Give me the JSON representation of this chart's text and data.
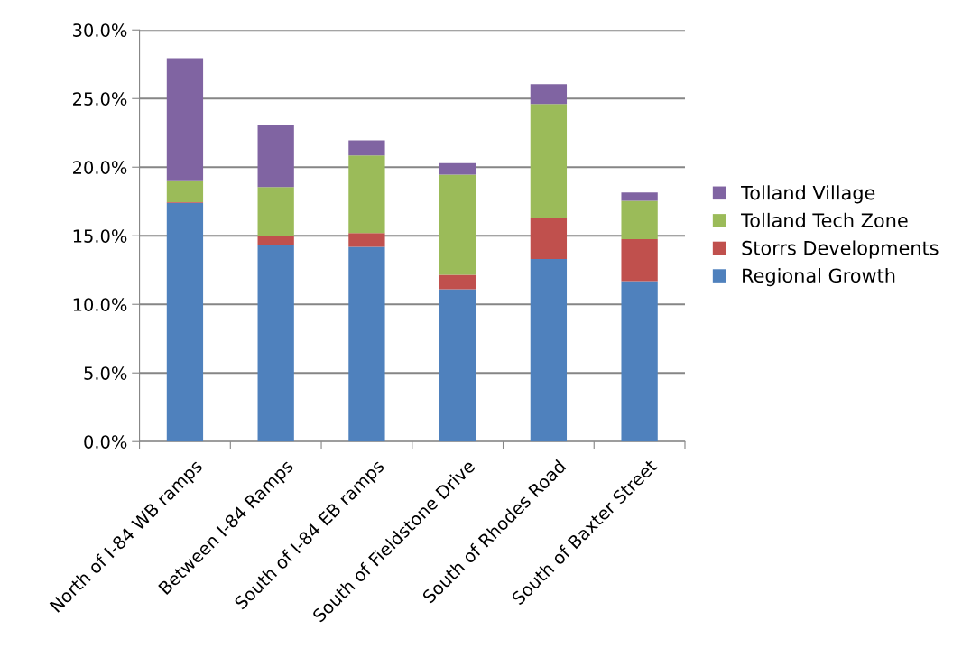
{
  "chart_data": {
    "type": "bar",
    "stacked": true,
    "categories": [
      "North of I-84 WB ramps",
      "Between I-84 Ramps",
      "South of I-84 EB ramps",
      "South of Fieldstone Drive",
      "South of Rhodes Road",
      "South of Baxter Street"
    ],
    "series": [
      {
        "name": "Regional Growth",
        "color": "#4f81bd",
        "values": [
          17.4,
          14.3,
          14.2,
          11.1,
          13.3,
          11.7
        ]
      },
      {
        "name": "Storrs Developments",
        "color": "#c0504d",
        "values": [
          0.05,
          0.65,
          1.0,
          1.05,
          3.0,
          3.05
        ]
      },
      {
        "name": "Tolland Tech Zone",
        "color": "#9bbb59",
        "values": [
          1.6,
          3.6,
          5.65,
          7.3,
          8.3,
          2.8
        ]
      },
      {
        "name": "Tolland Village",
        "color": "#8064a2",
        "values": [
          8.9,
          4.55,
          1.1,
          0.85,
          1.45,
          0.6
        ]
      }
    ],
    "ylim": [
      0,
      30
    ],
    "yticks": [
      {
        "value": 0,
        "label": "0.0%"
      },
      {
        "value": 5,
        "label": "5.0%"
      },
      {
        "value": 10,
        "label": "10.0%"
      },
      {
        "value": 15,
        "label": "15.0%"
      },
      {
        "value": 20,
        "label": "20.0%"
      },
      {
        "value": 25,
        "label": "25.0%"
      },
      {
        "value": 30,
        "label": "30.0%"
      }
    ],
    "grid": "y",
    "legend": "right"
  }
}
